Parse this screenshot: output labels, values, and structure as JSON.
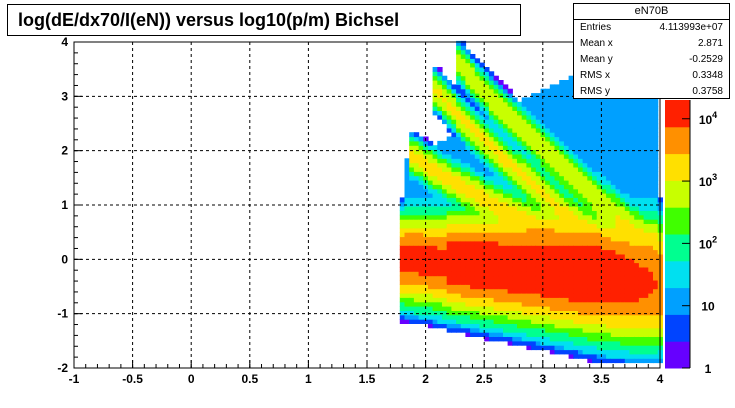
{
  "title": "log(dE/dx70/I(eN)) versus log10(p/m) Bichsel",
  "stats": {
    "name": "eN70B",
    "rows": [
      {
        "label": "Entries",
        "value": "4.113993e+07"
      },
      {
        "label": "Mean x",
        "value": "2.871"
      },
      {
        "label": "Mean y",
        "value": "-0.2529"
      },
      {
        "label": "RMS x",
        "value": "0.3348"
      },
      {
        "label": "RMS y",
        "value": "0.3758"
      }
    ]
  },
  "chart_data": {
    "type": "heatmap",
    "xlim": [
      -1,
      4
    ],
    "ylim": [
      -2,
      4
    ],
    "x_ticks": [
      "-1",
      "-0.5",
      "0",
      "0.5",
      "1",
      "1.5",
      "2",
      "2.5",
      "3",
      "3.5",
      "4"
    ],
    "y_ticks": [
      "-2",
      "-1",
      "0",
      "1",
      "2",
      "3",
      "4"
    ],
    "z_scale": "log",
    "z_range": [
      1,
      20000
    ],
    "z_ticks": [
      {
        "value": 1,
        "label": "1"
      },
      {
        "value": 10,
        "label": "10"
      },
      {
        "value": 100,
        "label": "10^2"
      },
      {
        "value": 1000,
        "label": "10^3"
      },
      {
        "value": 10000,
        "label": "10^4"
      }
    ],
    "grid": true,
    "bands": [
      {
        "x_start": 1.85,
        "x_end": 4.0,
        "y_start": 0.0,
        "y_end": -0.45,
        "peak": 18000
      },
      {
        "x_start": 1.9,
        "x_end": 3.4,
        "y_start": 1.9,
        "y_end": 0.1,
        "peak": 1500
      },
      {
        "x_start": 2.1,
        "x_end": 3.6,
        "y_start": 3.1,
        "y_end": 0.1,
        "peak": 1200
      },
      {
        "x_start": 2.3,
        "x_end": 3.9,
        "y_start": 3.6,
        "y_end": 0.3,
        "peak": 900
      }
    ],
    "palette": [
      "#6600ff",
      "#0044ff",
      "#00a0ff",
      "#00e0f0",
      "#00ff90",
      "#40ff00",
      "#c8ff00",
      "#ffe000",
      "#ff9000",
      "#ff2000"
    ]
  }
}
